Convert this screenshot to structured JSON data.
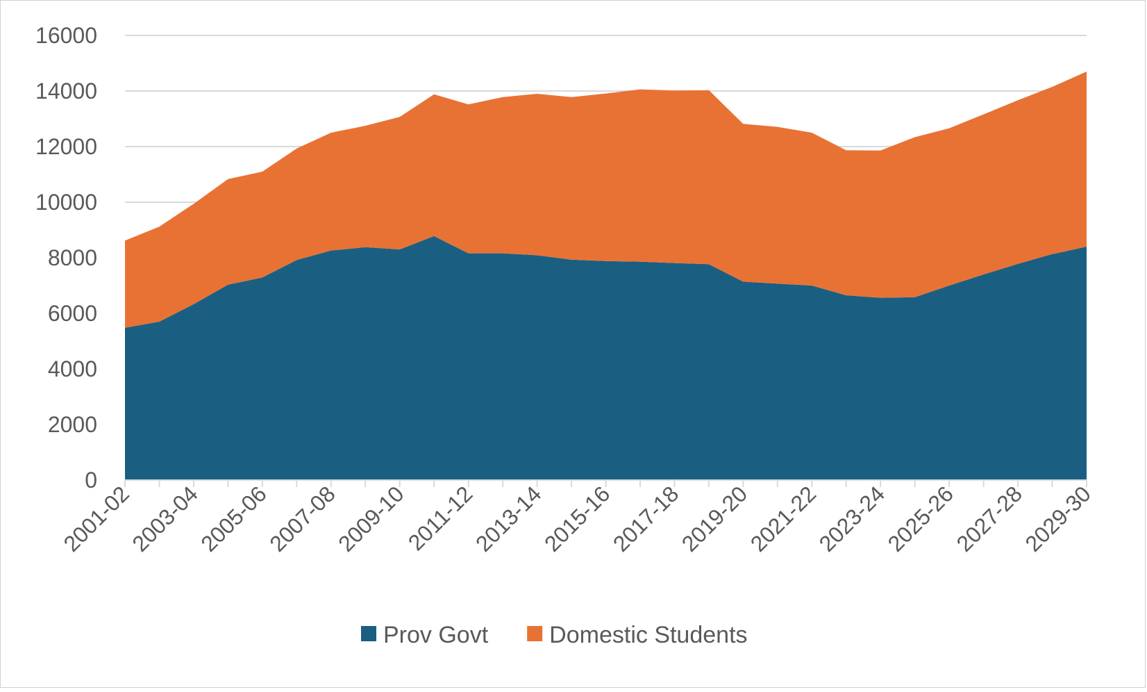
{
  "chart_data": {
    "type": "area",
    "stacked": true,
    "title": "",
    "xlabel": "",
    "ylabel": "",
    "ylim": [
      0,
      16000
    ],
    "yticks": [
      0,
      2000,
      4000,
      6000,
      8000,
      10000,
      12000,
      14000,
      16000
    ],
    "grid": "horizontal",
    "legend_position": "bottom",
    "categories": [
      "2001-02",
      "2002-03",
      "2003-04",
      "2004-05",
      "2005-06",
      "2006-07",
      "2007-08",
      "2008-09",
      "2009-10",
      "2010-11",
      "2011-12",
      "2012-13",
      "2013-14",
      "2014-15",
      "2015-16",
      "2016-17",
      "2017-18",
      "2018-19",
      "2019-20",
      "2020-21",
      "2021-22",
      "2022-23",
      "2023-24",
      "2024-25",
      "2025-26",
      "2026-27",
      "2027-28",
      "2028-29",
      "2029-30"
    ],
    "xtick_labels": [
      "2001-02",
      "2003-04",
      "2005-06",
      "2007-08",
      "2009-10",
      "2011-12",
      "2013-14",
      "2015-16",
      "2017-18",
      "2019-20",
      "2021-22",
      "2023-24",
      "2025-26",
      "2027-28",
      "2029-30"
    ],
    "series": [
      {
        "name": "Prov Govt",
        "color": "#1a5f82",
        "values": [
          5480,
          5700,
          6330,
          7030,
          7290,
          7920,
          8260,
          8380,
          8300,
          8780,
          8160,
          8160,
          8090,
          7930,
          7880,
          7860,
          7810,
          7770,
          7140,
          7070,
          7000,
          6650,
          6560,
          6580,
          7000,
          7400,
          7780,
          8130,
          8400
        ]
      },
      {
        "name": "Domestic Students",
        "color": "#e87234",
        "values": [
          3140,
          3420,
          3610,
          3800,
          3810,
          4010,
          4240,
          4370,
          4770,
          5100,
          5360,
          5620,
          5810,
          5850,
          6030,
          6200,
          6210,
          6260,
          5680,
          5640,
          5500,
          5220,
          5300,
          5760,
          5660,
          5760,
          5890,
          6020,
          6300
        ]
      }
    ]
  }
}
